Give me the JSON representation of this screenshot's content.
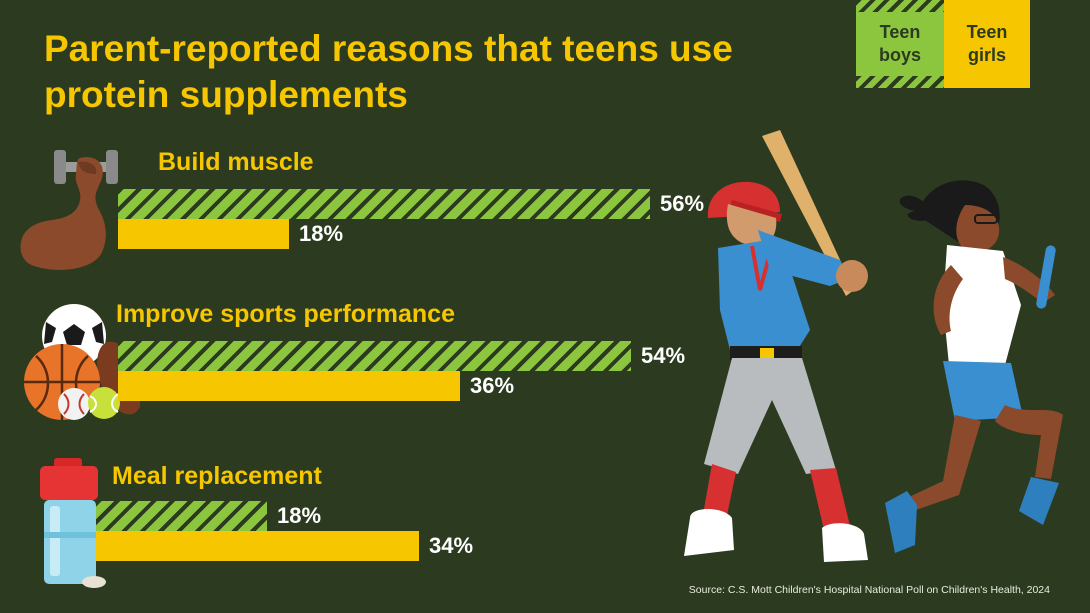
{
  "title": "Parent-reported reasons that teens use protein supplements",
  "legend": {
    "boys": "Teen\nboys",
    "girls": "Teen\ngirls"
  },
  "source": "Source: C.S. Mott Children's Hospital National Poll on Children's Health, 2024",
  "colors": {
    "boys": "#8cc63f",
    "girls": "#f6c700",
    "background": "#2c3b20",
    "title": "#f6c700"
  },
  "icons": [
    "flexed-arm-dumbbell-icon",
    "sports-balls-icon",
    "shaker-bottle-icon",
    "baseball-player-illustration",
    "runner-illustration"
  ],
  "chart_data": {
    "type": "bar",
    "title": "Parent-reported reasons that teens use protein supplements",
    "categories": [
      "Build muscle",
      "Improve sports performance",
      "Meal replacement"
    ],
    "series": [
      {
        "name": "Teen boys",
        "values": [
          56,
          54,
          18
        ],
        "labels": [
          "56%",
          "54%",
          "18%"
        ]
      },
      {
        "name": "Teen girls",
        "values": [
          18,
          36,
          34
        ],
        "labels": [
          "18%",
          "36%",
          "34%"
        ]
      }
    ],
    "unit": "%",
    "orientation": "horizontal",
    "legend": "top-right",
    "grid": false
  }
}
